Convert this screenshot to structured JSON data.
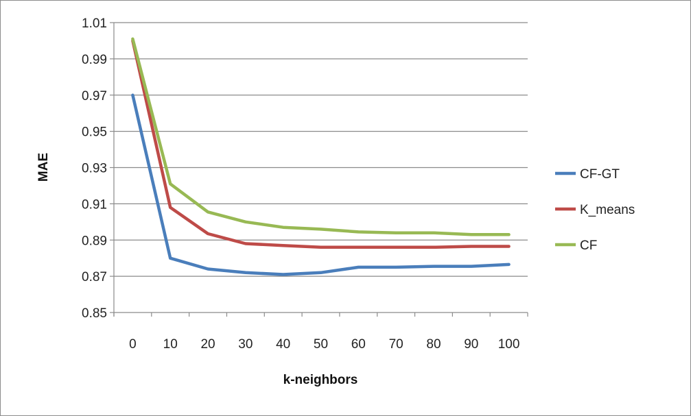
{
  "chart_data": {
    "type": "line",
    "xlabel": "k-neighbors",
    "ylabel": "MAE",
    "categories": [
      "0",
      "10",
      "20",
      "30",
      "40",
      "50",
      "60",
      "70",
      "80",
      "90",
      "100"
    ],
    "y_ticks": [
      "0.85",
      "0.87",
      "0.89",
      "0.91",
      "0.93",
      "0.95",
      "0.97",
      "0.99",
      "1.01"
    ],
    "ylim": [
      0.85,
      1.01
    ],
    "grid": true,
    "legend_position": "right",
    "series": [
      {
        "name": "CF-GT",
        "color": "#4a7ebb",
        "values": [
          0.97,
          0.88,
          0.874,
          0.872,
          0.871,
          0.872,
          0.875,
          0.875,
          0.8755,
          0.8755,
          0.8765
        ]
      },
      {
        "name": "K_means",
        "color": "#be4b48",
        "values": [
          1.0,
          0.908,
          0.8935,
          0.888,
          0.887,
          0.886,
          0.886,
          0.886,
          0.886,
          0.8865,
          0.8865
        ]
      },
      {
        "name": "CF",
        "color": "#98b954",
        "values": [
          1.001,
          0.921,
          0.9055,
          0.9,
          0.897,
          0.896,
          0.8945,
          0.894,
          0.894,
          0.893,
          0.893
        ]
      }
    ]
  }
}
